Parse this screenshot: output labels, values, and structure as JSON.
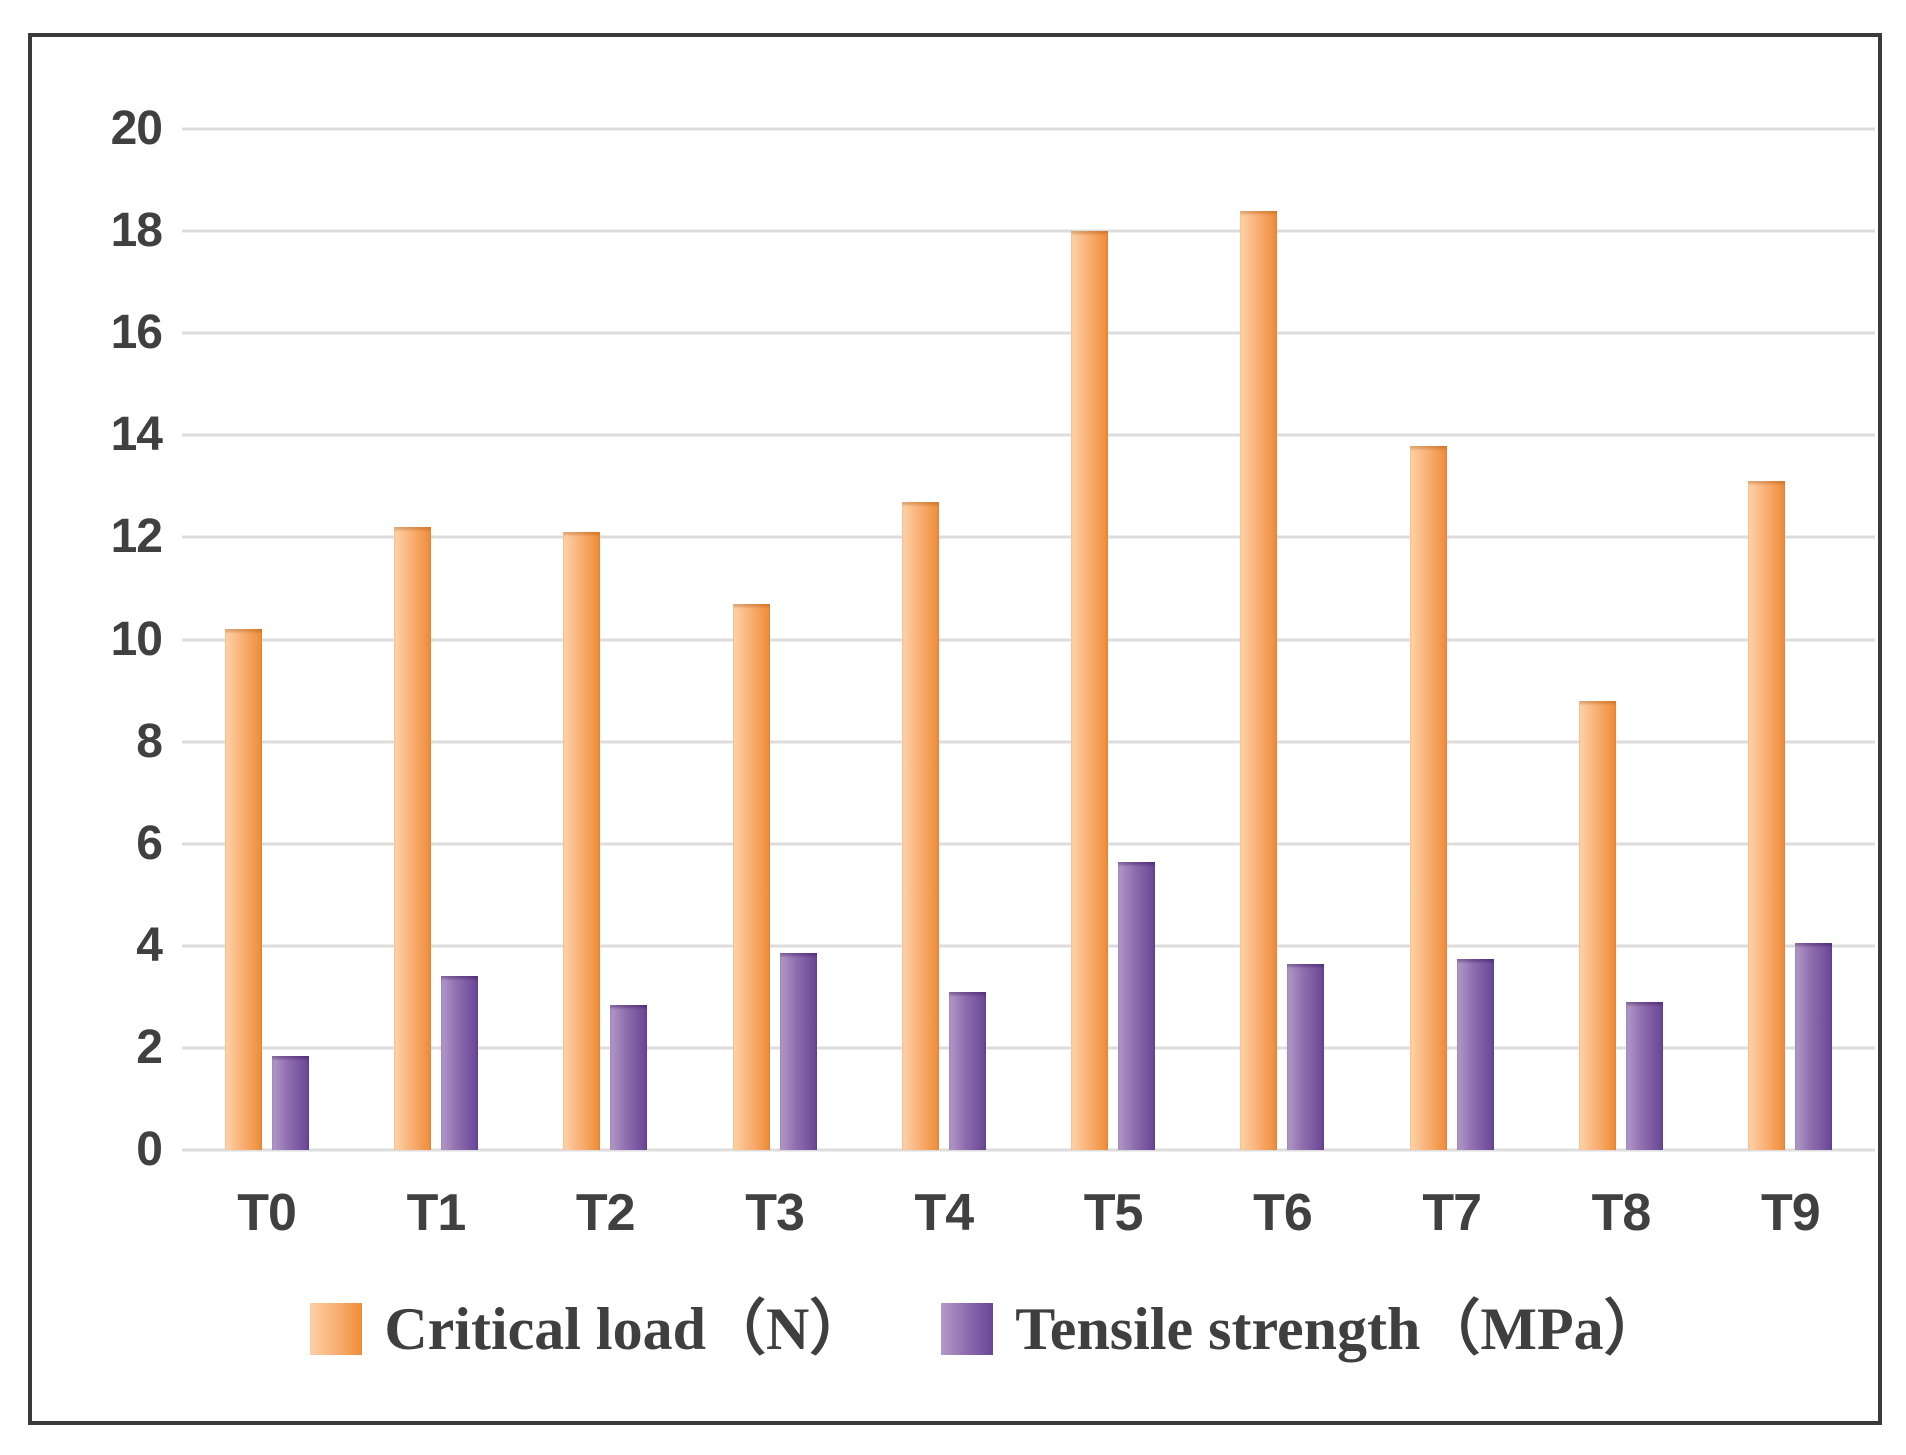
{
  "chart_data": {
    "type": "bar",
    "title": "",
    "categories": [
      "T0",
      "T1",
      "T2",
      "T3",
      "T4",
      "T5",
      "T6",
      "T7",
      "T8",
      "T9"
    ],
    "series": [
      {
        "key": "critical-load",
        "name": "Critical load（N）",
        "color_light": "#fdd3a9",
        "color_dark": "#ee8b36",
        "values": [
          10.2,
          12.2,
          12.1,
          10.7,
          12.7,
          18.0,
          18.4,
          13.8,
          8.8,
          13.1
        ]
      },
      {
        "key": "tensile-strength",
        "name": "Tensile strength（MPa）",
        "color_light": "#b29ac8",
        "color_dark": "#694695",
        "values": [
          1.85,
          3.4,
          2.85,
          3.85,
          3.1,
          5.65,
          3.65,
          3.75,
          2.9,
          4.05
        ]
      }
    ],
    "ylim": [
      0,
      20
    ],
    "yticks": [
      0,
      2,
      4,
      6,
      8,
      10,
      12,
      14,
      16,
      18,
      20
    ],
    "grid": true,
    "gridline_color": "#dcdcdc",
    "axis_label_color": "#404040",
    "frame_color": "#3a3a3a",
    "legend_position": "bottom"
  }
}
